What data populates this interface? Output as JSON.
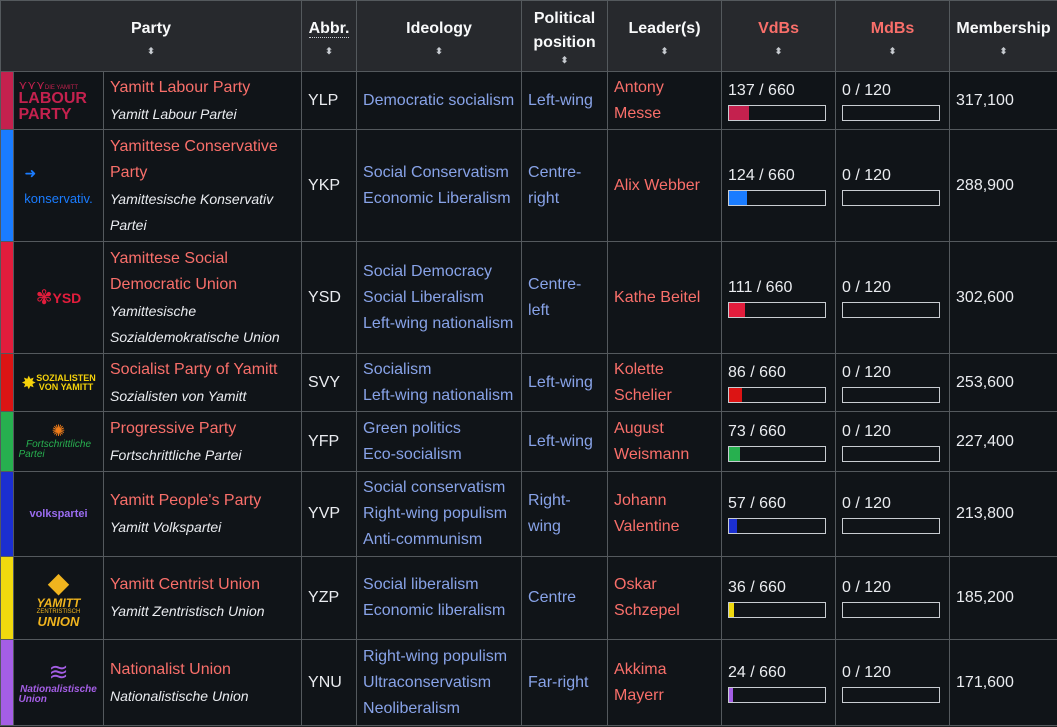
{
  "headers": {
    "party": "Party",
    "abbr": "Abbr.",
    "ideology": "Ideology",
    "position": "Political position",
    "leaders": "Leader(s)",
    "vdbs": "VdBs",
    "mdbs": "MdBs",
    "membership": "Membership",
    "sort_glyph": "⬍"
  },
  "logos": {
    "ylp_small": "DIE YAMITT",
    "ylp_big1": "LABOUR",
    "ylp_big2": "PARTY",
    "ykp": "konservativ.",
    "ysd": "YSD",
    "svy1": "SOZIALISTEN",
    "svy2": "VON YAMITT",
    "yfp1": "Fortschrittliche",
    "yfp2": "Partei",
    "yvp": "volkspartei",
    "yzp1": "YAMITT",
    "yzp2": "ZENTRISTISCH",
    "yzp3": "UNION",
    "ynu1": "Nationalistische",
    "ynu2": "Union"
  },
  "rows": [
    {
      "color": "#c4214e",
      "name": "Yamitt Labour Party",
      "native": "Yamitt Labour Partei",
      "abbr": "YLP",
      "ideology": [
        "Democratic socialism"
      ],
      "position": "Left-wing",
      "leader": "Antony Messe",
      "vdb": "137 / 660",
      "vdb_value": 137,
      "mdb": "0 / 120",
      "mdb_value": 0,
      "membership": "317,100"
    },
    {
      "color": "#1a7cff",
      "name": "Yamittese Conservative Party",
      "native": "Yamittesische Konservativ Partei",
      "abbr": "YKP",
      "ideology": [
        "Social Conservatism",
        "Economic Liberalism"
      ],
      "position": "Centre-right",
      "leader": "Alix Webber",
      "vdb": "124 / 660",
      "vdb_value": 124,
      "mdb": "0 / 120",
      "mdb_value": 0,
      "membership": "288,900"
    },
    {
      "color": "#e21d3c",
      "name": "Yamittese Social Democratic Union",
      "native": "Yamittesische Sozialdemokratische Union",
      "abbr": "YSD",
      "ideology": [
        "Social Democracy",
        "Social Liberalism",
        "Left-wing nationalism"
      ],
      "position": "Centre-left",
      "leader": "Kathe Beitel",
      "vdb": "111 / 660",
      "vdb_value": 111,
      "mdb": "0 / 120",
      "mdb_value": 0,
      "membership": "302,600"
    },
    {
      "color": "#dc1414",
      "name": "Socialist Party of Yamitt",
      "native": "Sozialisten von Yamitt",
      "abbr": "SVY",
      "ideology": [
        "Socialism",
        "Left-wing nationalism"
      ],
      "position": "Left-wing",
      "leader": "Kolette Schelier",
      "vdb": "86 / 660",
      "vdb_value": 86,
      "mdb": "0 / 120",
      "mdb_value": 0,
      "membership": "253,600"
    },
    {
      "color": "#27b04f",
      "name": "Progressive Party",
      "native": "Fortschrittliche Partei",
      "abbr": "YFP",
      "ideology": [
        "Green politics",
        "Eco-socialism"
      ],
      "position": "Left-wing",
      "leader": "August Weismann",
      "vdb": "73 / 660",
      "vdb_value": 73,
      "mdb": "0 / 120",
      "mdb_value": 0,
      "membership": "227,400"
    },
    {
      "color": "#1b2fd1",
      "name": "Yamitt People's Party",
      "native": "Yamitt Volkspartei",
      "abbr": "YVP",
      "ideology": [
        "Social conservatism",
        "Right-wing populism",
        "Anti-communism"
      ],
      "position": "Right-wing",
      "leader": "Johann Valentine",
      "vdb": "57 / 660",
      "vdb_value": 57,
      "mdb": "0 / 120",
      "mdb_value": 0,
      "membership": "213,800"
    },
    {
      "color": "#f0d90e",
      "name": "Yamitt Centrist Union",
      "native": "Yamitt Zentristisch Union",
      "abbr": "YZP",
      "ideology": [
        "Social liberalism",
        "Economic liberalism"
      ],
      "position": "Centre",
      "leader": "Oskar Schzepel",
      "vdb": "36 / 660",
      "vdb_value": 36,
      "mdb": "0 / 120",
      "mdb_value": 0,
      "membership": "185,200"
    },
    {
      "color": "#a45ee5",
      "name": "Nationalist Union",
      "native": "Nationalistische Union",
      "abbr": "YNU",
      "ideology": [
        "Right-wing populism",
        "Ultraconservatism",
        "Neoliberalism"
      ],
      "position": "Far-right",
      "leader": "Akkima Mayerr",
      "vdb": "24 / 660",
      "vdb_value": 24,
      "mdb": "0 / 120",
      "mdb_value": 0,
      "membership": "171,600"
    }
  ]
}
